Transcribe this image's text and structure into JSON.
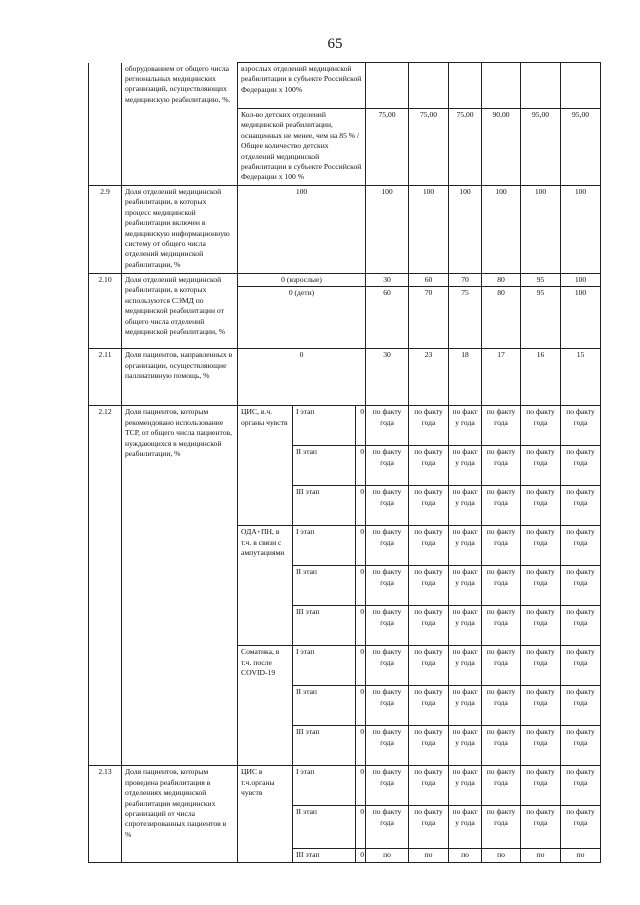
{
  "page_number": "65",
  "rows": [
    {
      "num": "",
      "indicator": "оборудованием от общего числа региональных медицинских организаций, осуществляющих медицинскую реабилитацию, %.",
      "subrows": [
        {
          "base": "взрослых отделений медицинской реабилитации в субъекте Российской Федерации х 100%",
          "base_align": "left",
          "values": [
            "",
            "",
            "",
            "",
            "",
            ""
          ]
        },
        {
          "base": "Кол-во детских отделений медицинской реабилитации, оснащенных не менее, чем на 85 % / Общее количество детских отделений медицинской реабилитации в субъекте Российской Федерации х 100 %",
          "base_align": "left",
          "values": [
            "75,00",
            "75,00",
            "75,00",
            "90,00",
            "95,00",
            "95,00"
          ]
        }
      ]
    },
    {
      "num": "2.9",
      "indicator": "Доля отделений медицинской реабилитации, в которых процесс медицинской реабилитации включен в медицинскую информационную систему от общего числа отделений медицинской реабилитации, %",
      "subrows": [
        {
          "base": "100",
          "values": [
            "100",
            "100",
            "100",
            "100",
            "100",
            "100"
          ]
        }
      ]
    },
    {
      "num": "2.10",
      "indicator": "Доля отделений медицинской реабилитации, в которых используются СЭМД по медицинской реабилитации от общего числа отделений медицинской реабилитации, %",
      "subrows": [
        {
          "base": "0 (взрослые)",
          "values": [
            "30",
            "60",
            "70",
            "80",
            "95",
            "100"
          ]
        },
        {
          "base": "0 (дети)",
          "values": [
            "60",
            "70",
            "75",
            "80",
            "95",
            "100"
          ]
        }
      ]
    },
    {
      "num": "2.11",
      "indicator": "Доля пациентов, направленных в организации, осуществляющие паллиативную помощь, %",
      "subrows": [
        {
          "base": "0",
          "values": [
            "30",
            "23",
            "18",
            "17",
            "16",
            "15"
          ]
        }
      ]
    },
    {
      "num": "2.12",
      "indicator": "Доля пациентов, которым рекомендовано использование ТСР, от общего числа пациентов, нуждающихся в медицинской реабилитации, %",
      "subrows": [
        {
          "group": "ЦИС, в.ч. органы чувств",
          "stage": "I этап",
          "base": "0",
          "values": [
            "по факту года",
            "по факту года",
            "по факт у года",
            "по факту года",
            "по факту года",
            "по факту года"
          ]
        },
        {
          "stage": "II этап",
          "base": "0",
          "values": [
            "по факту года",
            "по факту года",
            "по факт у года",
            "по факту года",
            "по факту года",
            "по факту года"
          ]
        },
        {
          "stage": "III этап",
          "base": "0",
          "values": [
            "по факту года",
            "по факту года",
            "по факт у года",
            "по факту года",
            "по факту года",
            "по факту года"
          ]
        },
        {
          "group": "ОДА+ПН, в т.ч. в связи с ампутациями",
          "stage": "I этап",
          "base": "0",
          "values": [
            "по факту года",
            "по факту года",
            "по факт у года",
            "по факту года",
            "по факту года",
            "по факту года"
          ]
        },
        {
          "stage": "II этап",
          "base": "0",
          "values": [
            "по факту года",
            "по факту года",
            "по факт у года",
            "по факту года",
            "по факту года",
            "по факту года"
          ]
        },
        {
          "stage": "III этап",
          "base": "0",
          "values": [
            "по факту года",
            "по факту года",
            "по факт у года",
            "по факту года",
            "по факту года",
            "по факту года"
          ]
        },
        {
          "group": "Соматика, в т.ч. после COVID-19",
          "stage": "I этап",
          "base": "0",
          "values": [
            "по факту года",
            "по факту года",
            "по факт у года",
            "по факту года",
            "по факту года",
            "по факту года"
          ]
        },
        {
          "stage": "II этап",
          "base": "0",
          "values": [
            "по факту года",
            "по факту года",
            "по факт у года",
            "по факту года",
            "по факту года",
            "по факту года"
          ]
        },
        {
          "stage": "III этап",
          "base": "0",
          "values": [
            "по факту года",
            "по факту года",
            "по факт у года",
            "по факту года",
            "по факту года",
            "по факту года"
          ]
        }
      ]
    },
    {
      "num": "2.13",
      "indicator": "Доля пациентов, которым проведена реабилитация в отделениях медицинской реабилитации медицинских организаций от числа спротезированных пациентов в %",
      "subrows": [
        {
          "group": "ЦИС в т.ч.органы чувств",
          "stage": "I этап",
          "base": "0",
          "values": [
            "по факту года",
            "по факту года",
            "по факт у года",
            "по факту года",
            "по факту года",
            "по факту года"
          ]
        },
        {
          "stage": "II этап",
          "base": "0",
          "values": [
            "по факту года",
            "по факту года",
            "по факт у года",
            "по факту года",
            "по факту года",
            "по факту года"
          ]
        },
        {
          "stage": "III этап",
          "base": "0",
          "values": [
            "по",
            "по",
            "по",
            "по",
            "по",
            "по"
          ]
        }
      ]
    }
  ]
}
